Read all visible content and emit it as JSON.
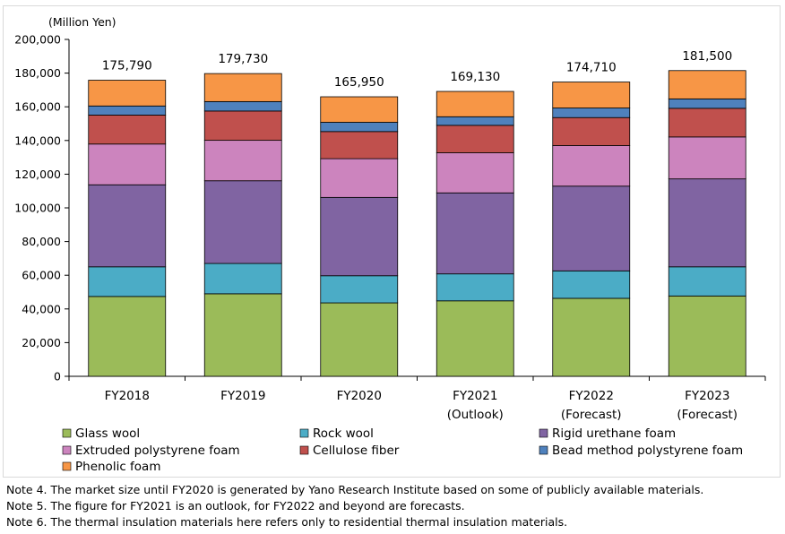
{
  "chart_data": {
    "type": "bar",
    "stacked": true,
    "unit_label": "(Million Yen)",
    "categories": [
      [
        "FY2018"
      ],
      [
        "FY2019"
      ],
      [
        "FY2020"
      ],
      [
        "FY2021",
        "(Outlook)"
      ],
      [
        "FY2022",
        "(Forecast)"
      ],
      [
        "FY2023",
        "(Forecast)"
      ]
    ],
    "totals": [
      "175,790",
      "179,730",
      "165,950",
      "169,130",
      "174,710",
      "181,500"
    ],
    "ylim": [
      0,
      200000
    ],
    "yticks": [
      0,
      20000,
      40000,
      60000,
      80000,
      100000,
      120000,
      140000,
      160000,
      180000,
      200000
    ],
    "ytick_labels": [
      "0",
      "20,000",
      "40,000",
      "60,000",
      "80,000",
      "100,000",
      "120,000",
      "140,000",
      "160,000",
      "180,000",
      "200,000"
    ],
    "legend_position": "bottom",
    "series": [
      {
        "name": "Glass wool",
        "color": "#9bbb59",
        "values": [
          47400,
          49000,
          43600,
          44800,
          46300,
          47700
        ]
      },
      {
        "name": "Rock wool",
        "color": "#4bacc6",
        "values": [
          17600,
          18000,
          16100,
          16000,
          16300,
          17300
        ]
      },
      {
        "name": "Rigid urethane foam",
        "color": "#8064a2",
        "values": [
          48700,
          49100,
          46500,
          48100,
          50300,
          52200
        ]
      },
      {
        "name": "Extruded polystyrene foam",
        "color": "#cc84be",
        "values": [
          24200,
          24000,
          23000,
          23800,
          24100,
          24900
        ]
      },
      {
        "name": "Cellulose fiber",
        "color": "#c0504d",
        "values": [
          17200,
          17400,
          16100,
          16300,
          16600,
          17000
        ]
      },
      {
        "name": "Bead method polystyrene foam",
        "color": "#4f81bd",
        "values": [
          5400,
          5600,
          5500,
          5100,
          5700,
          5600
        ]
      },
      {
        "name": "Phenolic foam",
        "color": "#f79646",
        "values": [
          15290,
          16630,
          15150,
          15030,
          15410,
          16800
        ]
      }
    ]
  },
  "notes": [
    "Note 4.  The market size until FY2020 is generated by Yano Research Institute based on some of publicly available materials.",
    "Note 5.  The figure for FY2021 is an outlook, for FY2022 and beyond are forecasts.",
    "Note 6.  The thermal insulation materials here refers only to residential thermal insulation materials."
  ]
}
